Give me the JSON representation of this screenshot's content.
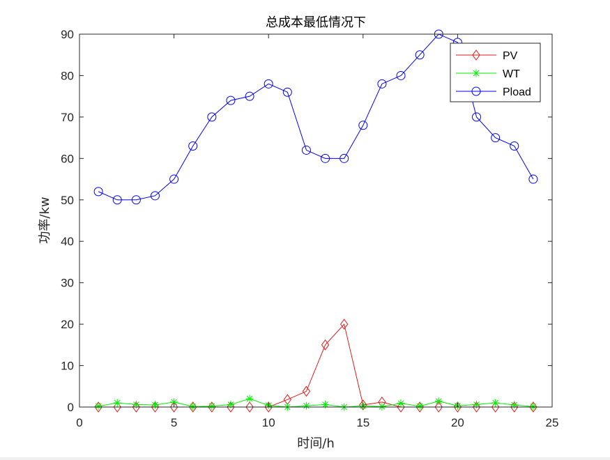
{
  "chart_data": {
    "type": "line",
    "title": "总成本最低情况下",
    "xlabel": "时间/h",
    "ylabel": "功率/kw",
    "xlim": [
      0,
      25
    ],
    "ylim": [
      0,
      90
    ],
    "xticks": [
      0,
      5,
      10,
      15,
      20,
      25
    ],
    "yticks": [
      0,
      10,
      20,
      30,
      40,
      50,
      60,
      70,
      80,
      90
    ],
    "grid": false,
    "legend_position": "top-right",
    "x": [
      1,
      2,
      3,
      4,
      5,
      6,
      7,
      8,
      9,
      10,
      11,
      12,
      13,
      14,
      15,
      16,
      17,
      18,
      19,
      20,
      21,
      22,
      23,
      24
    ],
    "series": [
      {
        "name": "PV",
        "color": "#e31a1c",
        "marker": "diamond",
        "values": [
          0,
          0,
          0,
          0,
          0,
          0,
          0,
          0,
          0,
          0,
          1.8,
          3.8,
          15,
          20,
          0.5,
          1.2,
          0,
          0,
          0,
          0,
          0,
          0,
          0,
          0
        ]
      },
      {
        "name": "WT",
        "color": "#00ee00",
        "marker": "asterisk",
        "values": [
          0.2,
          1,
          0.6,
          0.5,
          1.2,
          0.1,
          0.2,
          0.6,
          2,
          0.4,
          0,
          0.3,
          0.6,
          0,
          0.3,
          0.1,
          0.9,
          0.2,
          1.4,
          0.3,
          0.6,
          1,
          0.5,
          0.1
        ]
      },
      {
        "name": "Pload",
        "color": "#0000ff",
        "marker": "circle",
        "values": [
          52,
          50,
          50,
          51,
          55,
          63,
          70,
          74,
          75,
          78,
          76,
          62,
          60,
          60,
          68,
          78,
          80,
          85,
          90,
          88,
          70,
          65,
          63,
          55
        ]
      }
    ]
  }
}
